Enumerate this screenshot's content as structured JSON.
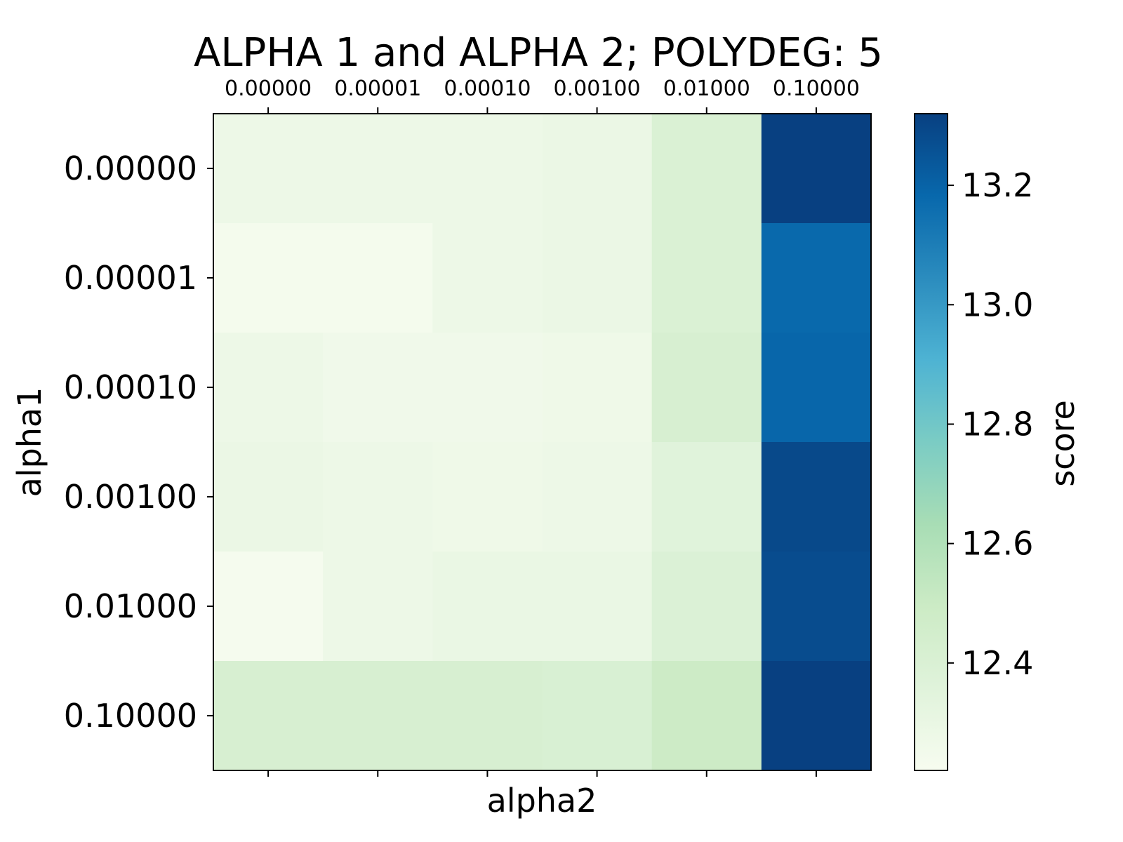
{
  "chart_data": {
    "type": "heatmap",
    "title": "ALPHA 1 and ALPHA 2; POLYDEG: 5",
    "xlabel": "alpha2",
    "ylabel": "alpha1",
    "x_tick_labels": [
      "0.00000",
      "0.00001",
      "0.00010",
      "0.00100",
      "0.01000",
      "0.10000"
    ],
    "y_tick_labels": [
      "0.00000",
      "0.00001",
      "0.00010",
      "0.00100",
      "0.01000",
      "0.10000"
    ],
    "x_axis_position": "top",
    "values": [
      [
        12.28,
        12.28,
        12.28,
        12.29,
        12.4,
        13.32
      ],
      [
        12.24,
        12.24,
        12.28,
        12.29,
        12.4,
        13.18
      ],
      [
        12.28,
        12.26,
        12.26,
        12.27,
        12.42,
        13.19
      ],
      [
        12.29,
        12.28,
        12.27,
        12.28,
        12.36,
        13.29
      ],
      [
        12.23,
        12.28,
        12.3,
        12.3,
        12.39,
        13.28
      ],
      [
        12.42,
        12.42,
        12.42,
        12.41,
        12.49,
        13.34
      ]
    ],
    "colormap": "GnBu",
    "colorbar": {
      "label": "score",
      "range": [
        12.22,
        13.32
      ],
      "ticks": [
        12.4,
        12.6,
        12.8,
        13.0,
        13.2
      ],
      "tick_labels": [
        "12.4",
        "12.6",
        "12.8",
        "13.0",
        "13.2"
      ]
    },
    "colors": {
      "low": "#f7fcf0",
      "high": "#084081"
    }
  }
}
